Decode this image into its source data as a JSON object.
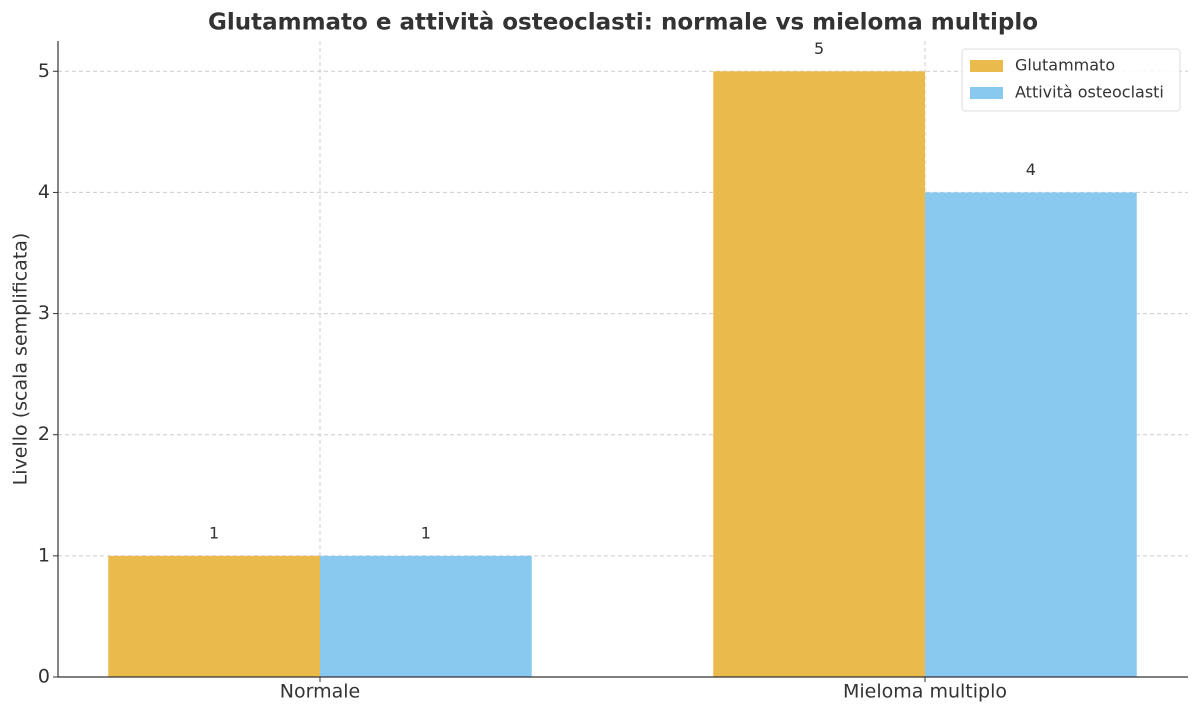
{
  "chart_data": {
    "type": "bar",
    "title": "Glutammato e attività osteoclasti: normale vs mieloma multiplo",
    "y_label": "Livello (scala semplificata)",
    "categories": [
      "Normale",
      "Mieloma multiplo"
    ],
    "series": [
      {
        "name": "Glutammato",
        "color": "#ebba4d",
        "values": [
          1,
          5
        ]
      },
      {
        "name": "Attività osteoclasti",
        "color": "#89c9ef",
        "values": [
          1,
          4
        ]
      }
    ],
    "ylim": [
      0,
      5.25
    ],
    "yticks": [
      0,
      1,
      2,
      3,
      4,
      5
    ],
    "grid": true,
    "legend": "upper-right",
    "data_labels": true
  }
}
